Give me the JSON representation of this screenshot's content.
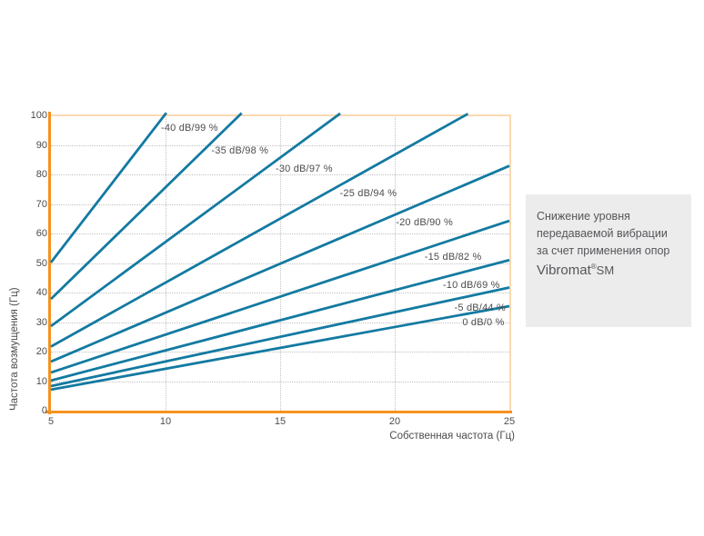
{
  "info_box": {
    "lines": [
      "Снижение уровня",
      "передаваемой вибрации",
      "за счет применения опор"
    ],
    "brand": {
      "name": "Vibromat",
      "reg": "®",
      "suffix": "SM"
    }
  },
  "chart_data": {
    "type": "line",
    "title": "",
    "xlabel": "Собственная частота (Гц)",
    "ylabel": "Частота возмущения (Гц)",
    "xlim": [
      5,
      25
    ],
    "ylim": [
      0,
      100
    ],
    "x_ticks": [
      5,
      10,
      15,
      20,
      25
    ],
    "y_ticks": [
      0,
      10,
      20,
      30,
      40,
      50,
      60,
      70,
      80,
      90,
      100
    ],
    "grid": true,
    "legend_position": "inline-labels",
    "colors": {
      "line": "#137AA1",
      "axis": "#F6921E",
      "plot_border": "#FBD9B2",
      "grid": "#C2C2C2",
      "text": "#4B4C4E",
      "box_bg": "#ECECEC",
      "box_text": "#55565A"
    },
    "series": [
      {
        "label": "-40 dB/99 %",
        "attenuation_db": -40,
        "isolation_pct": 99,
        "points": [
          [
            5,
            50.2
          ],
          [
            9.95,
            100
          ]
        ],
        "label_x": 9.8
      },
      {
        "label": "-35 dB/98 %",
        "attenuation_db": -35,
        "isolation_pct": 98,
        "points": [
          [
            5,
            37.8
          ],
          [
            13.22,
            100
          ]
        ],
        "label_x": 12.0
      },
      {
        "label": "-30 dB/97 %",
        "attenuation_db": -30,
        "isolation_pct": 97,
        "points": [
          [
            5,
            28.6
          ],
          [
            17.51,
            100
          ]
        ],
        "label_x": 14.8
      },
      {
        "label": "-25 dB/94 %",
        "attenuation_db": -25,
        "isolation_pct": 94,
        "points": [
          [
            5,
            21.7
          ],
          [
            23.07,
            100
          ]
        ],
        "label_x": 17.6
      },
      {
        "label": "-20 dB/90 %",
        "attenuation_db": -20,
        "isolation_pct": 90,
        "points": [
          [
            5,
            16.6
          ],
          [
            25,
            82.9
          ]
        ],
        "label_x": 20.05
      },
      {
        "label": "-15 dB/82 %",
        "attenuation_db": -15,
        "isolation_pct": 82,
        "points": [
          [
            5,
            12.9
          ],
          [
            25,
            64.3
          ]
        ],
        "label_x": 21.3
      },
      {
        "label": "-10 dB/69 %",
        "attenuation_db": -10,
        "isolation_pct": 69,
        "points": [
          [
            5,
            10.2
          ],
          [
            25,
            51.0
          ]
        ],
        "label_x": 22.1
      },
      {
        "label": "-5 dB/44 %",
        "attenuation_db": -5,
        "isolation_pct": 44,
        "points": [
          [
            5,
            8.3
          ],
          [
            25,
            41.7
          ]
        ],
        "label_x": 22.6
      },
      {
        "label": "0 dB/0 %",
        "attenuation_db": 0,
        "isolation_pct": 0,
        "points": [
          [
            5,
            7.1
          ],
          [
            25,
            35.4
          ]
        ],
        "label_x": 22.95
      }
    ]
  }
}
